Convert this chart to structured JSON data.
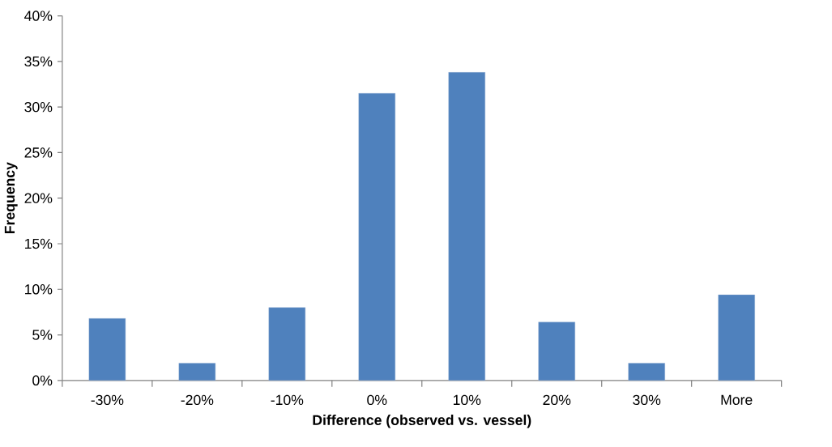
{
  "chart_data": {
    "type": "bar",
    "xlabel": "Difference (observed vs. vessel)",
    "ylabel": "Frequency",
    "categories": [
      "-30%",
      "-20%",
      "-10%",
      "0%",
      "10%",
      "20%",
      "30%",
      "More"
    ],
    "values": [
      6.8,
      1.9,
      8.0,
      31.5,
      33.8,
      6.4,
      1.9,
      9.4
    ],
    "color": "#4f81bd",
    "ylim": [
      0,
      40
    ],
    "yticks": [
      {
        "value": 0,
        "label": "0%"
      },
      {
        "value": 5,
        "label": "5%"
      },
      {
        "value": 10,
        "label": "10%"
      },
      {
        "value": 15,
        "label": "15%"
      },
      {
        "value": 20,
        "label": "20%"
      },
      {
        "value": 25,
        "label": "25%"
      },
      {
        "value": 30,
        "label": "30%"
      },
      {
        "value": 35,
        "label": "35%"
      },
      {
        "value": 40,
        "label": "40%"
      }
    ],
    "grid": false
  }
}
